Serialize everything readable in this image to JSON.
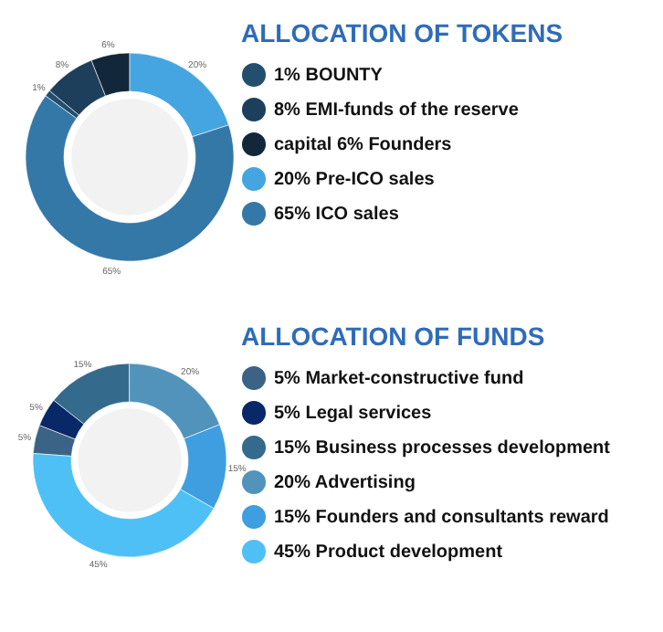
{
  "chart_data": [
    {
      "type": "donut",
      "legend_title": "ALLOCATION OF TOKENS",
      "categories": [
        "1% BOUNTY",
        "8% EMI-funds of the reserve",
        "capital 6% Founders",
        "20% Pre-ICO sales",
        "65% ICO sales"
      ],
      "values": [
        1,
        8,
        6,
        20,
        65
      ],
      "colors": [
        "#244e6e",
        "#1d3f5c",
        "#12283a",
        "#45a5e0",
        "#3478a8"
      ],
      "value_labels": [
        "1%",
        "8%",
        "6%",
        "20%",
        "65%"
      ],
      "legend": "right"
    },
    {
      "type": "donut",
      "legend_title": "ALLOCATION OF FUNDS",
      "categories": [
        "5% Market-constructive fund",
        "5% Legal services",
        "15% Business processes development",
        "20% Advertising",
        "15% Founders and consultants reward",
        "45% Product development"
      ],
      "values": [
        5,
        5,
        15,
        20,
        15,
        45
      ],
      "colors": [
        "#3a6385",
        "#082868",
        "#346a8c",
        "#5193bb",
        "#3e9ee0",
        "#4fc0f5"
      ],
      "value_labels": [
        "5%",
        "5%",
        "15%",
        "20%",
        "15%",
        "45%"
      ],
      "legend": "right"
    }
  ]
}
